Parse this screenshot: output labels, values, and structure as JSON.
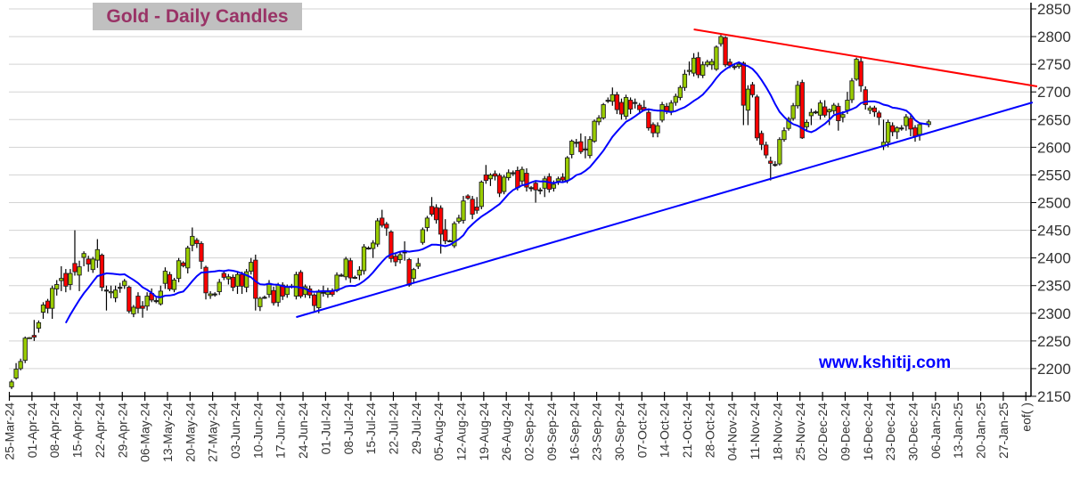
{
  "title": "Gold - Daily Candles",
  "watermark": "www.kshitij.com",
  "colors": {
    "up": "#99cc00",
    "down": "#ff0000",
    "ma_line": "#0000ff",
    "resistance_line": "#ff0000",
    "support_line": "#0000ff",
    "grid": "#d3d3d3",
    "title_text": "#993366",
    "title_bg": "#c0c0c0"
  },
  "chart_data": {
    "type": "candlestick",
    "title": "Gold - Daily Candles",
    "ylim": [
      2150,
      2850
    ],
    "y_ticks": [
      "2150",
      "2200",
      "2250",
      "2300",
      "2350",
      "2400",
      "2450",
      "2500",
      "2550",
      "2600",
      "2650",
      "2700",
      "2750",
      "2800",
      "2850"
    ],
    "y_axis_position": "right",
    "grid": true,
    "x_ticks": [
      "25-Mar-24",
      "01-Apr-24",
      "08-Apr-24",
      "15-Apr-24",
      "22-Apr-24",
      "29-Apr-24",
      "06-May-24",
      "13-May-24",
      "20-May-24",
      "27-May-24",
      "03-Jun-24",
      "10-Jun-24",
      "17-Jun-24",
      "24-Jun-24",
      "01-Jul-24",
      "08-Jul-24",
      "15-Jul-24",
      "22-Jul-24",
      "29-Jul-24",
      "05-Aug-24",
      "12-Aug-24",
      "19-Aug-24",
      "26-Aug-24",
      "02-Sep-24",
      "09-Sep-24",
      "16-Sep-24",
      "23-Sep-24",
      "30-Sep-24",
      "07-Oct-24",
      "14-Oct-24",
      "21-Oct-24",
      "28-Oct-24",
      "04-Nov-24",
      "11-Nov-24",
      "18-Nov-24",
      "25-Nov-24",
      "02-Dec-24",
      "09-Dec-24",
      "16-Dec-24",
      "23-Dec-24",
      "30-Dec-24",
      "06-Jan-25",
      "13-Jan-25",
      "20-Jan-25",
      "27-Jan-25",
      "eof( )"
    ],
    "candle_fields": [
      "open",
      "high",
      "low",
      "close"
    ],
    "candles": [
      [
        2167,
        2180,
        2163,
        2176
      ],
      [
        2183,
        2210,
        2180,
        2199
      ],
      [
        2200,
        2218,
        2197,
        2213
      ],
      [
        2215,
        2258,
        2210,
        2255
      ],
      [
        2255,
        2257,
        2254,
        2256
      ],
      [
        2260,
        2288,
        2250,
        2257
      ],
      [
        2273,
        2287,
        2265,
        2283
      ],
      [
        2302,
        2320,
        2290,
        2315
      ],
      [
        2322,
        2326,
        2300,
        2309
      ],
      [
        2309,
        2350,
        2290,
        2345
      ],
      [
        2344,
        2360,
        2332,
        2352
      ],
      [
        2359,
        2385,
        2340,
        2363
      ],
      [
        2372,
        2380,
        2338,
        2349
      ],
      [
        2352,
        2380,
        2342,
        2372
      ],
      [
        2390,
        2450,
        2368,
        2375
      ],
      [
        2369,
        2395,
        2340,
        2384
      ],
      [
        2401,
        2412,
        2385,
        2408
      ],
      [
        2398,
        2404,
        2375,
        2389
      ],
      [
        2379,
        2402,
        2373,
        2398
      ],
      [
        2396,
        2434,
        2382,
        2415
      ],
      [
        2405,
        2408,
        2340,
        2347
      ],
      [
        2342,
        2350,
        2305,
        2342
      ],
      [
        2337,
        2350,
        2327,
        2339
      ],
      [
        2328,
        2350,
        2320,
        2342
      ],
      [
        2347,
        2355,
        2337,
        2347
      ],
      [
        2350,
        2362,
        2344,
        2358
      ],
      [
        2347,
        2350,
        2300,
        2304
      ],
      [
        2299,
        2315,
        2293,
        2311
      ],
      [
        2331,
        2338,
        2300,
        2309
      ],
      [
        2313,
        2322,
        2292,
        2309
      ],
      [
        2313,
        2338,
        2305,
        2331
      ],
      [
        2336,
        2345,
        2320,
        2324
      ],
      [
        2323,
        2328,
        2318,
        2323
      ],
      [
        2317,
        2350,
        2314,
        2340
      ],
      [
        2354,
        2383,
        2344,
        2376
      ],
      [
        2370,
        2375,
        2340,
        2344
      ],
      [
        2343,
        2364,
        2338,
        2360
      ],
      [
        2363,
        2400,
        2356,
        2395
      ],
      [
        2391,
        2394,
        2383,
        2386
      ],
      [
        2382,
        2422,
        2372,
        2418
      ],
      [
        2423,
        2455,
        2412,
        2439
      ],
      [
        2432,
        2436,
        2418,
        2426
      ],
      [
        2426,
        2430,
        2380,
        2394
      ],
      [
        2383,
        2386,
        2325,
        2337
      ],
      [
        2332,
        2340,
        2326,
        2335
      ],
      [
        2335,
        2338,
        2330,
        2335
      ],
      [
        2339,
        2362,
        2333,
        2356
      ],
      [
        2372,
        2378,
        2360,
        2365
      ],
      [
        2362,
        2371,
        2352,
        2366
      ],
      [
        2365,
        2370,
        2340,
        2347
      ],
      [
        2349,
        2375,
        2335,
        2370
      ],
      [
        2370,
        2375,
        2335,
        2349
      ],
      [
        2347,
        2380,
        2338,
        2375
      ],
      [
        2376,
        2400,
        2370,
        2392
      ],
      [
        2396,
        2406,
        2305,
        2327
      ],
      [
        2312,
        2330,
        2304,
        2327
      ],
      [
        2329,
        2332,
        2326,
        2329
      ],
      [
        2334,
        2360,
        2328,
        2354
      ],
      [
        2341,
        2348,
        2314,
        2319
      ],
      [
        2320,
        2355,
        2312,
        2351
      ],
      [
        2351,
        2356,
        2324,
        2331
      ],
      [
        2334,
        2352,
        2328,
        2347
      ],
      [
        2349,
        2353,
        2345,
        2349
      ],
      [
        2331,
        2375,
        2325,
        2370
      ],
      [
        2374,
        2378,
        2327,
        2331
      ],
      [
        2334,
        2352,
        2328,
        2348
      ],
      [
        2344,
        2350,
        2327,
        2333
      ],
      [
        2333,
        2336,
        2302,
        2314
      ],
      [
        2310,
        2343,
        2300,
        2338
      ],
      [
        2338,
        2350,
        2330,
        2338
      ],
      [
        2334,
        2346,
        2328,
        2341
      ],
      [
        2341,
        2345,
        2330,
        2334
      ],
      [
        2341,
        2374,
        2338,
        2369
      ],
      [
        2369,
        2372,
        2366,
        2369
      ],
      [
        2366,
        2402,
        2360,
        2398
      ],
      [
        2395,
        2400,
        2355,
        2364
      ],
      [
        2365,
        2368,
        2362,
        2365
      ],
      [
        2369,
        2385,
        2360,
        2378
      ],
      [
        2377,
        2425,
        2370,
        2420
      ],
      [
        2418,
        2421,
        2415,
        2418
      ],
      [
        2417,
        2432,
        2400,
        2427
      ],
      [
        2425,
        2472,
        2420,
        2467
      ],
      [
        2472,
        2487,
        2455,
        2459
      ],
      [
        2461,
        2465,
        2440,
        2454
      ],
      [
        2447,
        2450,
        2392,
        2399
      ],
      [
        2403,
        2410,
        2385,
        2393
      ],
      [
        2397,
        2410,
        2390,
        2406
      ],
      [
        2411,
        2430,
        2395,
        2411
      ],
      [
        2397,
        2400,
        2348,
        2351
      ],
      [
        2363,
        2382,
        2355,
        2379
      ],
      [
        2385,
        2400,
        2380,
        2390
      ],
      [
        2428,
        2455,
        2424,
        2451
      ],
      [
        2455,
        2476,
        2448,
        2472
      ],
      [
        2493,
        2510,
        2475,
        2479
      ],
      [
        2491,
        2497,
        2462,
        2469
      ],
      [
        2490,
        2495,
        2408,
        2443
      ],
      [
        2451,
        2470,
        2425,
        2431
      ],
      [
        2431,
        2433,
        2429,
        2431
      ],
      [
        2422,
        2466,
        2418,
        2462
      ],
      [
        2466,
        2478,
        2462,
        2472
      ],
      [
        2468,
        2512,
        2462,
        2503
      ],
      [
        2512,
        2515,
        2505,
        2508
      ],
      [
        2506,
        2512,
        2470,
        2479
      ],
      [
        2492,
        2510,
        2480,
        2486
      ],
      [
        2493,
        2540,
        2488,
        2537
      ],
      [
        2550,
        2568,
        2534,
        2540
      ],
      [
        2543,
        2553,
        2530,
        2550
      ],
      [
        2552,
        2558,
        2540,
        2548
      ],
      [
        2549,
        2553,
        2510,
        2517
      ],
      [
        2520,
        2550,
        2515,
        2546
      ],
      [
        2545,
        2560,
        2540,
        2554
      ],
      [
        2554,
        2558,
        2548,
        2554
      ],
      [
        2558,
        2565,
        2522,
        2527
      ],
      [
        2539,
        2565,
        2533,
        2560
      ],
      [
        2553,
        2562,
        2520,
        2528
      ],
      [
        2527,
        2530,
        2520,
        2527
      ],
      [
        2535,
        2540,
        2500,
        2523
      ],
      [
        2523,
        2527,
        2515,
        2523
      ],
      [
        2526,
        2548,
        2510,
        2543
      ],
      [
        2547,
        2553,
        2518,
        2524
      ],
      [
        2526,
        2540,
        2520,
        2533
      ],
      [
        2539,
        2547,
        2532,
        2543
      ],
      [
        2546,
        2553,
        2538,
        2541
      ],
      [
        2540,
        2584,
        2535,
        2581
      ],
      [
        2587,
        2614,
        2580,
        2611
      ],
      [
        2609,
        2615,
        2600,
        2609
      ],
      [
        2610,
        2625,
        2588,
        2592
      ],
      [
        2597,
        2620,
        2580,
        2597
      ],
      [
        2585,
        2620,
        2580,
        2614
      ],
      [
        2611,
        2650,
        2608,
        2647
      ],
      [
        2646,
        2658,
        2640,
        2653
      ],
      [
        2653,
        2680,
        2650,
        2677
      ],
      [
        2685,
        2690,
        2680,
        2685
      ],
      [
        2683,
        2708,
        2675,
        2695
      ],
      [
        2695,
        2700,
        2660,
        2668
      ],
      [
        2681,
        2688,
        2650,
        2660
      ],
      [
        2656,
        2695,
        2650,
        2690
      ],
      [
        2685,
        2690,
        2660,
        2669
      ],
      [
        2681,
        2688,
        2670,
        2681
      ],
      [
        2676,
        2680,
        2660,
        2668
      ],
      [
        2672,
        2685,
        2665,
        2667
      ],
      [
        2663,
        2670,
        2630,
        2635
      ],
      [
        2641,
        2645,
        2618,
        2626
      ],
      [
        2626,
        2645,
        2618,
        2639
      ],
      [
        2649,
        2682,
        2645,
        2677
      ],
      [
        2674,
        2680,
        2660,
        2666
      ],
      [
        2665,
        2685,
        2658,
        2680
      ],
      [
        2681,
        2697,
        2675,
        2692
      ],
      [
        2690,
        2712,
        2685,
        2708
      ],
      [
        2708,
        2740,
        2702,
        2732
      ],
      [
        2737,
        2755,
        2730,
        2739
      ],
      [
        2734,
        2770,
        2728,
        2761
      ],
      [
        2762,
        2772,
        2725,
        2731
      ],
      [
        2730,
        2755,
        2725,
        2749
      ],
      [
        2749,
        2758,
        2745,
        2754
      ],
      [
        2749,
        2760,
        2740,
        2755
      ],
      [
        2741,
        2784,
        2738,
        2781
      ],
      [
        2787,
        2803,
        2782,
        2800
      ],
      [
        2798,
        2801,
        2745,
        2749
      ],
      [
        2754,
        2760,
        2743,
        2748
      ],
      [
        2746,
        2752,
        2740,
        2746
      ],
      [
        2746,
        2755,
        2742,
        2750
      ],
      [
        2752,
        2755,
        2640,
        2676
      ],
      [
        2667,
        2712,
        2640,
        2705
      ],
      [
        2713,
        2718,
        2690,
        2695
      ],
      [
        2691,
        2695,
        2612,
        2617
      ],
      [
        2625,
        2630,
        2595,
        2605
      ],
      [
        2604,
        2610,
        2580,
        2586
      ],
      [
        2575,
        2583,
        2540,
        2571
      ],
      [
        2569,
        2575,
        2565,
        2569
      ],
      [
        2570,
        2618,
        2567,
        2614
      ],
      [
        2614,
        2636,
        2610,
        2630
      ],
      [
        2634,
        2655,
        2630,
        2651
      ],
      [
        2652,
        2680,
        2648,
        2675
      ],
      [
        2675,
        2720,
        2670,
        2712
      ],
      [
        2717,
        2722,
        2615,
        2617
      ],
      [
        2637,
        2650,
        2630,
        2645
      ],
      [
        2657,
        2670,
        2640,
        2663
      ],
      [
        2664,
        2667,
        2660,
        2664
      ],
      [
        2658,
        2685,
        2650,
        2680
      ],
      [
        2673,
        2685,
        2654,
        2658
      ],
      [
        2664,
        2670,
        2640,
        2668
      ],
      [
        2666,
        2680,
        2660,
        2676
      ],
      [
        2674,
        2680,
        2630,
        2648
      ],
      [
        2654,
        2665,
        2645,
        2659
      ],
      [
        2667,
        2700,
        2660,
        2685
      ],
      [
        2686,
        2725,
        2680,
        2720
      ],
      [
        2723,
        2762,
        2720,
        2759
      ],
      [
        2755,
        2762,
        2700,
        2711
      ],
      [
        2704,
        2710,
        2668,
        2677
      ],
      [
        2667,
        2675,
        2660,
        2671
      ],
      [
        2671,
        2675,
        2655,
        2664
      ],
      [
        2662,
        2666,
        2640,
        2654
      ],
      [
        2602,
        2650,
        2595,
        2609
      ],
      [
        2609,
        2650,
        2600,
        2645
      ],
      [
        2639,
        2645,
        2620,
        2628
      ],
      [
        2628,
        2638,
        2615,
        2635
      ],
      [
        2635,
        2640,
        2630,
        2635
      ],
      [
        2639,
        2660,
        2630,
        2655
      ],
      [
        2652,
        2658,
        2620,
        2633
      ],
      [
        2635,
        2640,
        2610,
        2620
      ],
      [
        2623,
        2645,
        2612,
        2641
      ],
      null,
      [
        2641,
        2650,
        2636,
        2646
      ]
    ],
    "trendlines": [
      {
        "role": "resistance",
        "color": "#ff0000",
        "start": {
          "date": "22-Oct-24",
          "price": 2813
        },
        "end": {
          "date": "05-Feb-25",
          "price": 2710
        }
      },
      {
        "role": "support",
        "color": "#0000ff",
        "start": {
          "date": "20-Jun-24",
          "price": 2293
        },
        "end": {
          "date": "04-Feb-25",
          "price": 2681
        }
      }
    ],
    "moving_average": {
      "color": "#0000ff"
    }
  }
}
